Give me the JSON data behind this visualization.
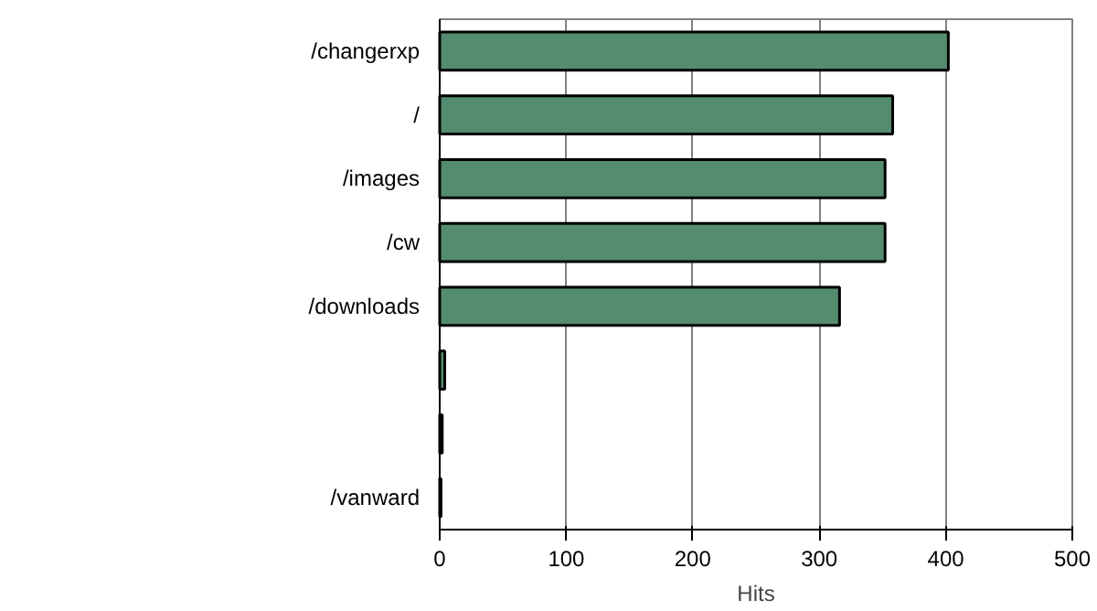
{
  "chart_data": {
    "type": "bar",
    "orientation": "horizontal",
    "xlabel": "Hits",
    "categories": [
      "/changerxp",
      "/",
      "/images",
      "/cw",
      "/downloads",
      null,
      null,
      "/vanward"
    ],
    "values": [
      402,
      358,
      352,
      352,
      316,
      4,
      2,
      1
    ],
    "color": "#548c6f",
    "xlim": [
      0,
      500
    ],
    "xticks": [
      0,
      100,
      200,
      300,
      400,
      500
    ],
    "grid": "x"
  }
}
